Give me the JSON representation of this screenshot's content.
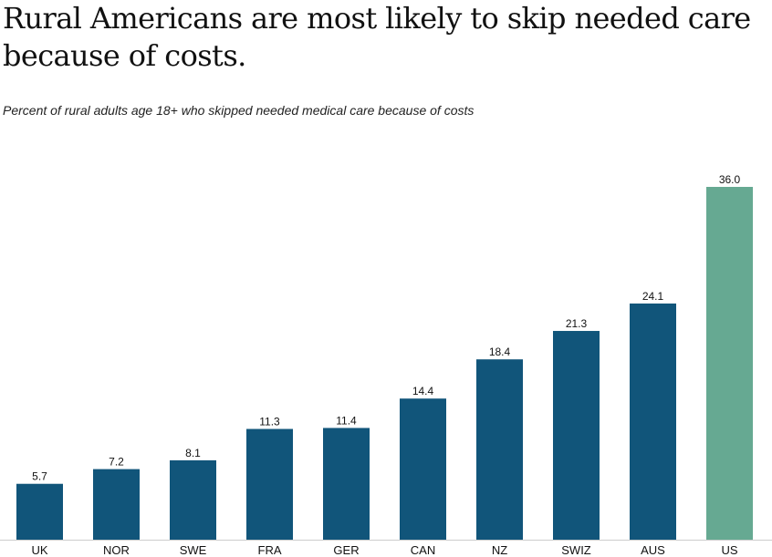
{
  "chart_data": {
    "type": "bar",
    "title": "Rural Americans are most likely to skip needed care because of costs.",
    "subtitle": "Percent of rural adults age 18+ who skipped needed medical care because of costs",
    "xlabel": "",
    "ylabel": "",
    "categories": [
      "UK",
      "NOR",
      "SWE",
      "FRA",
      "GER",
      "CAN",
      "NZ",
      "SWIZ",
      "AUS",
      "US"
    ],
    "values": [
      5.7,
      7.2,
      8.1,
      11.3,
      11.4,
      14.4,
      18.4,
      21.3,
      24.1,
      36.0
    ],
    "value_labels": [
      "5.7",
      "7.2",
      "8.1",
      "11.3",
      "11.4",
      "14.4",
      "18.4",
      "21.3",
      "24.1",
      "36.0"
    ],
    "highlight": "US",
    "ylim": [
      0,
      36
    ],
    "grid": false,
    "colors": {
      "bar": "#11557a",
      "highlight": "#66a992",
      "axis": "#cccccc"
    }
  }
}
